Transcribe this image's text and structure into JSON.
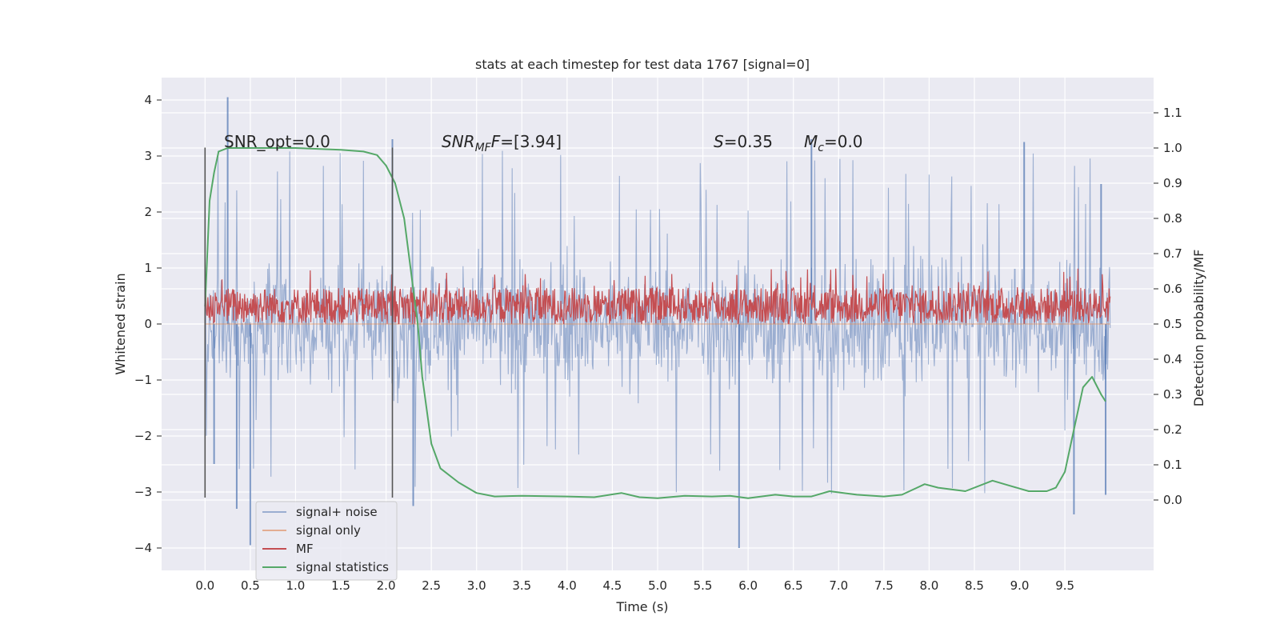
{
  "chart_data": {
    "type": "line",
    "title": "stats at each timestep for test data 1767 [signal=0]",
    "xlabel": "Time (s)",
    "ylabel": "Whitened strain",
    "ylabel_right": "Detection probability/MF",
    "xlim": [
      -0.48,
      10.48
    ],
    "ylim": [
      -4.4,
      4.4
    ],
    "ylim_right": [
      -0.2,
      1.2
    ],
    "x_ticks": [
      0.0,
      0.5,
      1.0,
      1.5,
      2.0,
      2.5,
      3.0,
      3.5,
      4.0,
      4.5,
      5.0,
      5.5,
      6.0,
      6.5,
      7.0,
      7.5,
      8.0,
      8.5,
      9.0,
      9.5
    ],
    "x_tick_labels": [
      "0.0",
      "0.5",
      "1.0",
      "1.5",
      "2.0",
      "2.5",
      "3.0",
      "3.5",
      "4.0",
      "4.5",
      "5.0",
      "5.5",
      "6.0",
      "6.5",
      "7.0",
      "7.5",
      "8.0",
      "8.5",
      "9.0",
      "9.5"
    ],
    "y_ticks": [
      -4,
      -3,
      -2,
      -1,
      0,
      1,
      2,
      3,
      4
    ],
    "y_tick_labels": [
      "−4",
      "−3",
      "−2",
      "−1",
      "0",
      "1",
      "2",
      "3",
      "4"
    ],
    "y_ticks_right": [
      0.0,
      0.1,
      0.2,
      0.3,
      0.4,
      0.5,
      0.6,
      0.7,
      0.8,
      0.9,
      1.0,
      1.1
    ],
    "y_tick_labels_right": [
      "0.0",
      "0.1",
      "0.2",
      "0.3",
      "0.4",
      "0.5",
      "0.6",
      "0.7",
      "0.8",
      "0.9",
      "1.0",
      "1.1"
    ],
    "grid": true,
    "legend_position": "lower-left",
    "annotations": {
      "snr_opt": "SNR_opt=0.0",
      "snr_mf_prefix": "SNR",
      "snr_mf_sub": "MF",
      "snr_mf_value": "=[3.94]",
      "s_prefix": "S",
      "s_value": "=0.35",
      "mc_prefix": "M",
      "mc_sub": "c",
      "mc_value": "=0.0"
    },
    "vertical_lines": [
      {
        "x": 0.0,
        "y_range": [
          -3.1,
          3.15
        ]
      },
      {
        "x": 2.07,
        "y_range": [
          -3.1,
          3.15
        ]
      }
    ],
    "series": [
      {
        "name": "signal+ noise",
        "color": "#4c72b0",
        "opacity": 0.5,
        "axis": "left",
        "x_range": [
          0.0,
          10.0
        ],
        "band": {
          "typical_low": -1.9,
          "typical_high": 1.9,
          "min": -4.0,
          "max": 4.05
        },
        "spikes": [
          [
            0.25,
            4.05
          ],
          [
            0.5,
            -3.95
          ],
          [
            0.35,
            -3.3
          ],
          [
            0.1,
            -2.5
          ],
          [
            2.07,
            3.3
          ],
          [
            2.3,
            -3.25
          ],
          [
            5.9,
            -4.0
          ],
          [
            9.6,
            -3.4
          ],
          [
            6.7,
            3.3
          ],
          [
            9.05,
            3.25
          ],
          [
            9.9,
            2.5
          ],
          [
            9.95,
            -3.05
          ]
        ]
      },
      {
        "name": "signal only",
        "color": "#dd8452",
        "opacity": 0.6,
        "axis": "left",
        "points": [
          [
            0.0,
            0.0
          ],
          [
            10.0,
            0.0
          ]
        ]
      },
      {
        "name": "MF",
        "color": "#c44e52",
        "axis": "left",
        "x_range": [
          0.0,
          10.0
        ],
        "band": {
          "low": 0.0,
          "high": 0.65,
          "max": 1.0
        }
      },
      {
        "name": "signal statistics",
        "color": "#55a868",
        "axis": "right",
        "points": [
          [
            0.0,
            0.55
          ],
          [
            0.05,
            0.85
          ],
          [
            0.1,
            0.93
          ],
          [
            0.15,
            0.99
          ],
          [
            0.25,
            1.0
          ],
          [
            0.5,
            1.0
          ],
          [
            1.0,
            1.0
          ],
          [
            1.5,
            0.995
          ],
          [
            1.75,
            0.99
          ],
          [
            1.9,
            0.98
          ],
          [
            2.0,
            0.95
          ],
          [
            2.1,
            0.9
          ],
          [
            2.2,
            0.8
          ],
          [
            2.3,
            0.6
          ],
          [
            2.35,
            0.5
          ],
          [
            2.4,
            0.35
          ],
          [
            2.5,
            0.16
          ],
          [
            2.6,
            0.09
          ],
          [
            2.8,
            0.05
          ],
          [
            3.0,
            0.02
          ],
          [
            3.2,
            0.01
          ],
          [
            3.5,
            0.012
          ],
          [
            4.0,
            0.01
          ],
          [
            4.3,
            0.008
          ],
          [
            4.6,
            0.02
          ],
          [
            4.8,
            0.008
          ],
          [
            5.0,
            0.005
          ],
          [
            5.3,
            0.012
          ],
          [
            5.6,
            0.01
          ],
          [
            5.8,
            0.012
          ],
          [
            6.0,
            0.005
          ],
          [
            6.3,
            0.015
          ],
          [
            6.5,
            0.01
          ],
          [
            6.7,
            0.01
          ],
          [
            6.9,
            0.025
          ],
          [
            7.2,
            0.015
          ],
          [
            7.5,
            0.01
          ],
          [
            7.7,
            0.015
          ],
          [
            7.95,
            0.045
          ],
          [
            8.1,
            0.035
          ],
          [
            8.4,
            0.025
          ],
          [
            8.7,
            0.055
          ],
          [
            8.9,
            0.04
          ],
          [
            9.1,
            0.025
          ],
          [
            9.3,
            0.025
          ],
          [
            9.4,
            0.035
          ],
          [
            9.5,
            0.08
          ],
          [
            9.6,
            0.2
          ],
          [
            9.7,
            0.32
          ],
          [
            9.8,
            0.35
          ],
          [
            9.9,
            0.3
          ],
          [
            9.95,
            0.28
          ]
        ]
      }
    ]
  }
}
